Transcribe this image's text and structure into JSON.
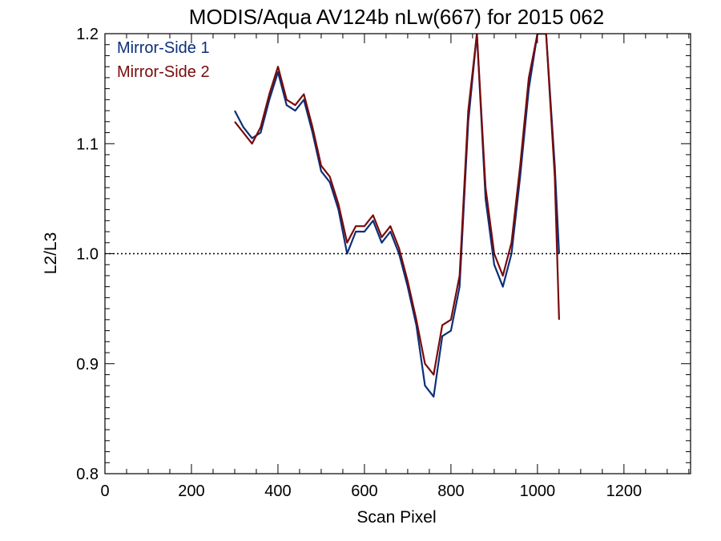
{
  "chart_data": {
    "type": "line",
    "title": "MODIS/Aqua AV124b nLw(667) for 2015 062",
    "xlabel": "Scan Pixel",
    "ylabel": "L2/L3",
    "xlim": [
      0,
      1354
    ],
    "ylim": [
      0.8,
      1.2
    ],
    "xticks": [
      0,
      200,
      400,
      600,
      800,
      1000,
      1200
    ],
    "xtick_labels": [
      "0",
      "200",
      "400",
      "600",
      "800",
      "1000",
      "1200"
    ],
    "yticks": [
      0.8,
      0.9,
      1.0,
      1.1,
      1.2
    ],
    "ytick_labels": [
      "0.8",
      "0.9",
      "1.0",
      "1.1",
      "1.2"
    ],
    "reference_line": {
      "y": 1.0,
      "style": "dotted"
    },
    "grid": false,
    "legend_position": "top-left",
    "colors": {
      "mirror_side_1": "#0b2f7a",
      "mirror_side_2": "#7a0a0a"
    },
    "x": [
      300,
      320,
      340,
      360,
      380,
      400,
      420,
      440,
      460,
      480,
      500,
      520,
      540,
      560,
      580,
      600,
      620,
      640,
      660,
      680,
      700,
      720,
      740,
      760,
      780,
      800,
      820,
      840,
      860,
      880,
      900,
      920,
      940,
      960,
      980,
      1000,
      1020,
      1040,
      1050
    ],
    "series": [
      {
        "name": "Mirror-Side 1",
        "values": [
          1.13,
          1.115,
          1.105,
          1.11,
          1.14,
          1.165,
          1.135,
          1.13,
          1.14,
          1.11,
          1.075,
          1.065,
          1.04,
          1.0,
          1.02,
          1.02,
          1.03,
          1.01,
          1.02,
          1.0,
          0.97,
          0.935,
          0.88,
          0.87,
          0.925,
          0.93,
          0.97,
          1.12,
          1.2,
          1.05,
          0.99,
          0.97,
          1.0,
          1.07,
          1.15,
          1.2,
          1.2,
          1.08,
          1.0
        ]
      },
      {
        "name": "Mirror-Side 2",
        "values": [
          1.12,
          1.11,
          1.1,
          1.115,
          1.145,
          1.17,
          1.14,
          1.135,
          1.145,
          1.115,
          1.08,
          1.07,
          1.045,
          1.01,
          1.025,
          1.025,
          1.035,
          1.015,
          1.025,
          1.005,
          0.975,
          0.94,
          0.9,
          0.89,
          0.935,
          0.94,
          0.98,
          1.13,
          1.2,
          1.06,
          1.0,
          0.98,
          1.01,
          1.08,
          1.16,
          1.2,
          1.2,
          1.07,
          0.94
        ]
      }
    ]
  }
}
